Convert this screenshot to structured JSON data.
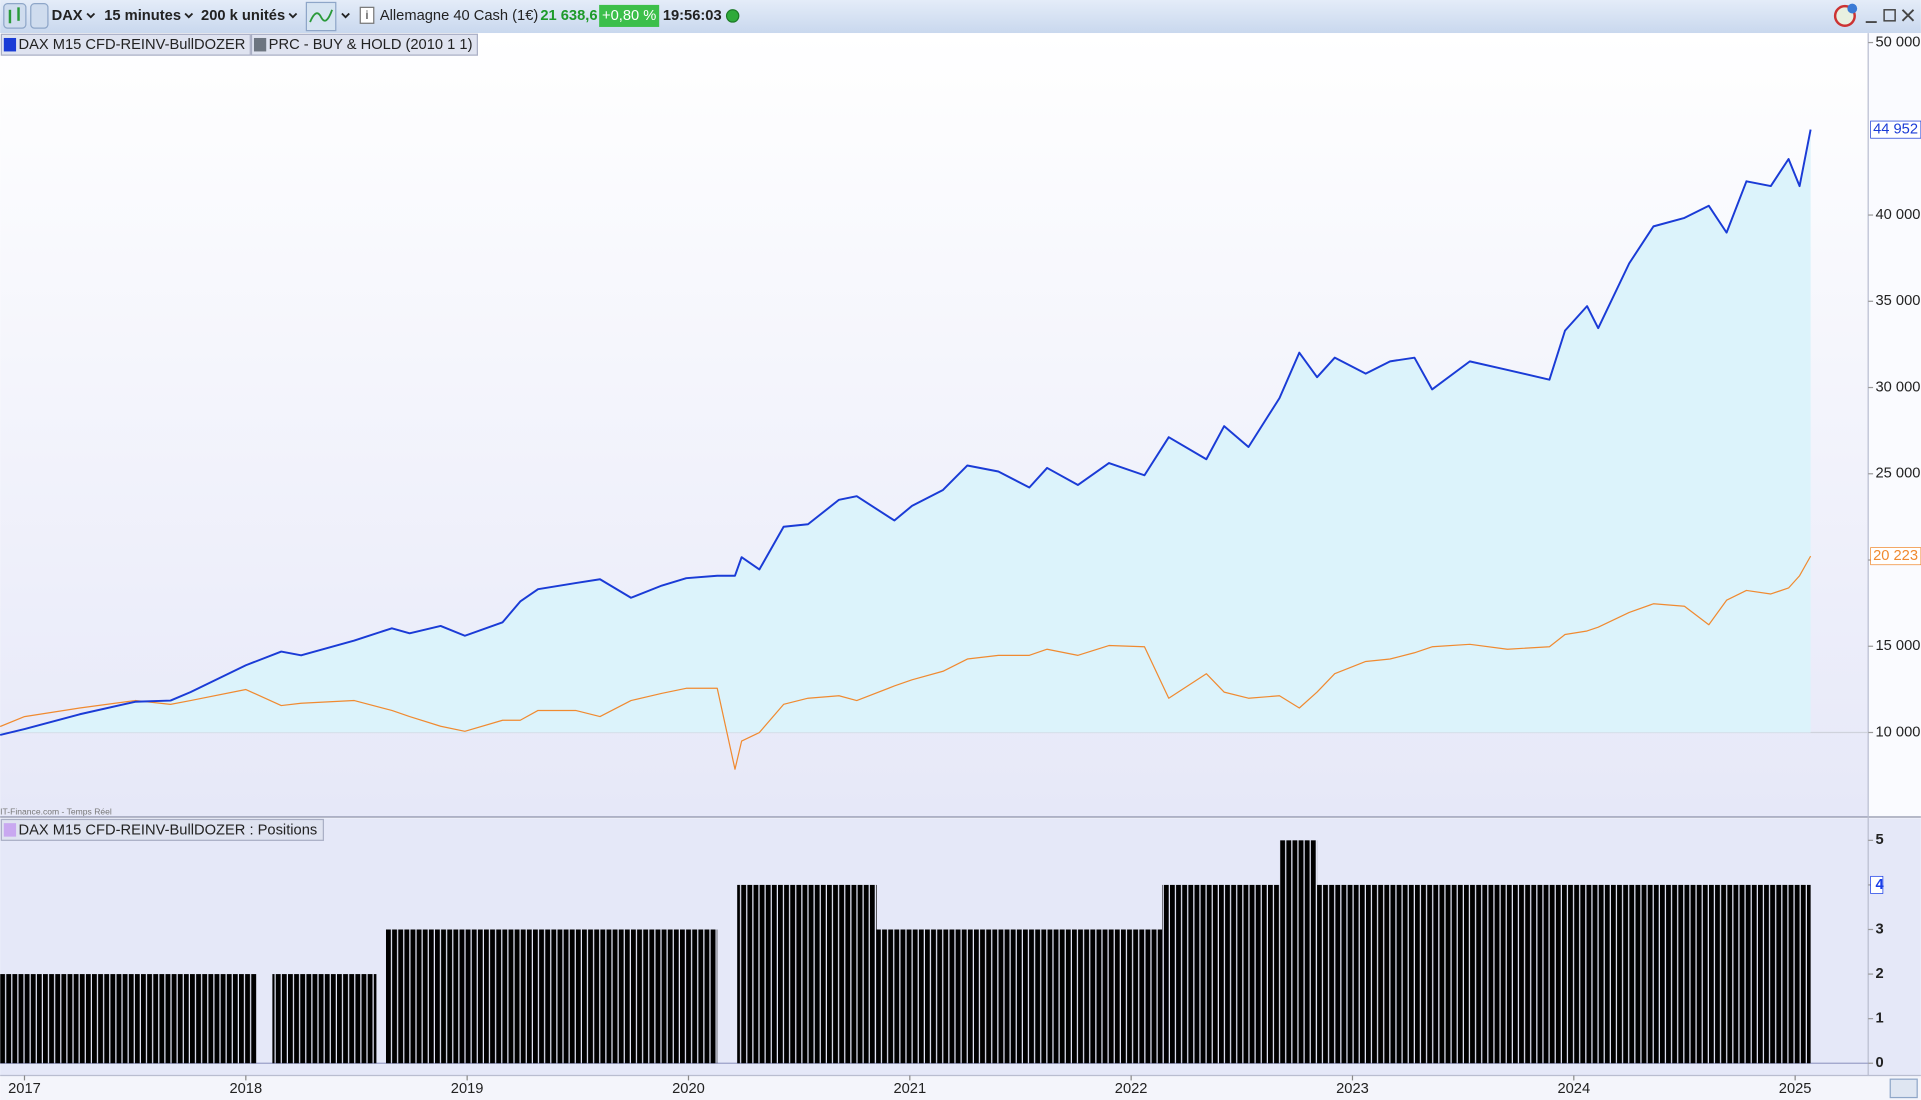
{
  "toolbar": {
    "symbol": "DAX",
    "timeframe": "15 minutes",
    "units": "200 k unités",
    "instrument": "Allemagne 40 Cash (1€)",
    "price": "21 638,6",
    "change": "+0,80 %",
    "time": "19:56:03"
  },
  "watermark": "IT-Finance.com - Temps Réel",
  "chart_data": [
    {
      "type": "line",
      "x": [
        2016.89,
        2017.0,
        2017.25,
        2017.5,
        2017.66,
        2017.75,
        2018.0,
        2018.16,
        2018.25,
        2018.49,
        2018.66,
        2018.74,
        2018.88,
        2018.99,
        2019.16,
        2019.24,
        2019.32,
        2019.49,
        2019.6,
        2019.74,
        2019.88,
        2019.99,
        2020.13,
        2020.21,
        2020.24,
        2020.32,
        2020.43,
        2020.54,
        2020.68,
        2020.76,
        2020.93,
        2021.01,
        2021.15,
        2021.26,
        2021.4,
        2021.54,
        2021.62,
        2021.76,
        2021.9,
        2022.06,
        2022.17,
        2022.34,
        2022.42,
        2022.53,
        2022.67,
        2022.76,
        2022.84,
        2022.92,
        2023.06,
        2023.17,
        2023.28,
        2023.36,
        2023.53,
        2023.7,
        2023.89,
        2023.96,
        2024.06,
        2024.11,
        2024.25,
        2024.36,
        2024.5,
        2024.61,
        2024.69,
        2024.78,
        2024.89,
        2024.97,
        2025.02,
        2025.07
      ],
      "series": [
        {
          "name": "DAX M15 CFD-REINV-BullDOZER",
          "color": "#1a3bd6",
          "values": [
            9860,
            10200,
            11060,
            11780,
            11850,
            12340,
            13900,
            14690,
            14470,
            15330,
            16040,
            15750,
            16180,
            15610,
            16390,
            17600,
            18310,
            18660,
            18880,
            17810,
            18520,
            18950,
            19090,
            19090,
            20160,
            19450,
            21930,
            22070,
            23490,
            23700,
            22290,
            23140,
            24060,
            25480,
            25130,
            24200,
            25340,
            24350,
            25620,
            24910,
            27120,
            25840,
            27760,
            26550,
            29390,
            32020,
            30600,
            31730,
            30810,
            31520,
            31730,
            29890,
            31520,
            31020,
            30450,
            33300,
            34720,
            33440,
            37200,
            39340,
            39830,
            40540,
            38980,
            41960,
            41680,
            43250,
            41680,
            44952
          ],
          "value_labels": [
            null,
            null,
            null,
            null,
            null,
            null,
            null,
            null,
            null,
            null,
            null,
            null,
            null,
            null,
            null,
            null,
            null,
            null,
            null,
            null,
            null,
            null,
            null,
            null,
            null,
            null,
            null,
            null,
            null,
            null,
            null,
            null,
            null,
            null,
            null,
            null,
            null,
            null,
            null,
            null,
            null,
            null,
            null,
            null,
            null,
            null,
            null,
            null,
            null,
            null,
            null,
            null,
            null,
            null,
            null,
            null,
            null,
            null,
            null,
            null,
            null,
            null,
            null,
            null,
            null,
            null,
            null,
            "44 952"
          ]
        },
        {
          "name": "PRC - BUY & HOLD (2010 1 1)",
          "color": "#f08a30",
          "values": [
            10350,
            10920,
            11420,
            11850,
            11630,
            11850,
            12490,
            11560,
            11700,
            11850,
            11280,
            10920,
            10360,
            10070,
            10710,
            10710,
            11280,
            11280,
            10920,
            11850,
            12270,
            12560,
            12560,
            7870,
            9500,
            10000,
            11630,
            11990,
            12130,
            11850,
            12700,
            13050,
            13550,
            14260,
            14470,
            14470,
            14830,
            14470,
            15040,
            14970,
            11990,
            13410,
            12340,
            11990,
            12130,
            11420,
            12340,
            13410,
            14120,
            14260,
            14620,
            14970,
            15110,
            14830,
            14970,
            15680,
            15890,
            16110,
            16960,
            17460,
            17320,
            16250,
            17670,
            18240,
            18030,
            18380,
            19090,
            20223
          ],
          "value_labels": [
            null,
            null,
            null,
            null,
            null,
            null,
            null,
            null,
            null,
            null,
            null,
            null,
            null,
            null,
            null,
            null,
            null,
            null,
            null,
            null,
            null,
            null,
            null,
            null,
            null,
            null,
            null,
            null,
            null,
            null,
            null,
            null,
            null,
            null,
            null,
            null,
            null,
            null,
            null,
            null,
            null,
            null,
            null,
            null,
            null,
            null,
            null,
            null,
            null,
            null,
            null,
            null,
            null,
            null,
            null,
            null,
            null,
            null,
            null,
            null,
            null,
            null,
            null,
            null,
            null,
            null,
            null,
            "20 223"
          ]
        }
      ],
      "area_color": "#dcf3fb",
      "xlim": [
        2016.89,
        2025.33
      ],
      "ylim": [
        5170,
        50550
      ],
      "yticks": [
        {
          "value": 10000,
          "label": "10 000"
        },
        {
          "value": 15000,
          "label": "15 000"
        },
        {
          "value": 20000,
          "label": "20 000"
        },
        {
          "value": 25000,
          "label": "25 000"
        },
        {
          "value": 30000,
          "label": "30 000"
        },
        {
          "value": 35000,
          "label": "35 000"
        },
        {
          "value": 40000,
          "label": "40 000"
        },
        {
          "value": 50000,
          "label": "50 000"
        }
      ],
      "grid": false
    },
    {
      "type": "histogram",
      "series": [
        {
          "name": "DAX M15 CFD-REINV-BullDOZER : Positions",
          "color": "#1a3ee8"
        }
      ],
      "bins": [
        2016.89,
        2018.05,
        2018.12,
        2018.59,
        2018.63,
        2020.13,
        2020.22,
        2020.85,
        2022.14,
        2022.67,
        2022.84,
        2025.07
      ],
      "values": [
        2,
        0,
        2,
        0,
        3,
        0,
        4,
        3,
        4,
        5,
        4
      ],
      "xlim": [
        2016.89,
        2025.33
      ],
      "xticks": [
        2017,
        2018,
        2019,
        2020,
        2021,
        2022,
        2023,
        2024,
        2025
      ],
      "ylim": [
        -0.11,
        5.44
      ],
      "yticks": [
        0,
        1,
        2,
        3,
        4,
        5
      ],
      "grid": false
    }
  ]
}
